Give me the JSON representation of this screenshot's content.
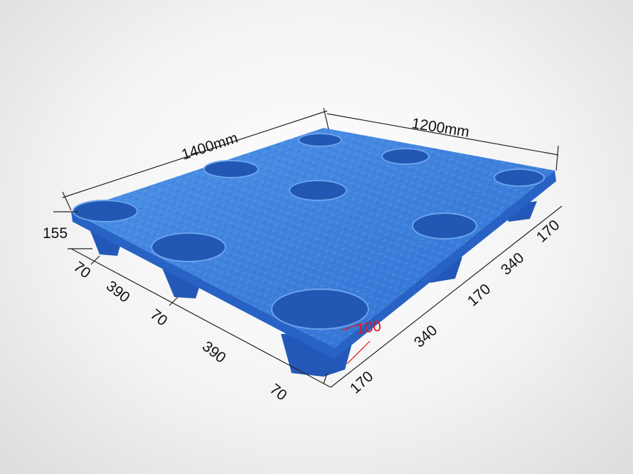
{
  "colors": {
    "pallet": "#3a7fdc",
    "pallet_dark": "#1f55b0",
    "hole": "#2a5fb8",
    "dimension_line": "#222222",
    "highlight": "#e8141b"
  },
  "dimensions": {
    "length": "1400mm",
    "width": "1200mm",
    "height": "155",
    "left_side": [
      "70",
      "390",
      "70",
      "390",
      "70"
    ],
    "right_side": [
      "170",
      "340",
      "170",
      "340",
      "170"
    ],
    "foot_height": "100"
  }
}
